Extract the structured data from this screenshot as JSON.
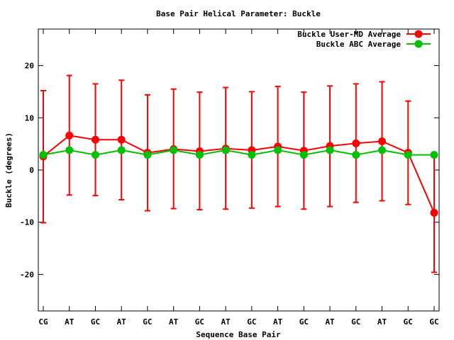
{
  "chart_data": {
    "type": "line",
    "title": "Base Pair Helical Parameter: Buckle",
    "xlabel": "Sequence Base Pair",
    "ylabel": "Buckle (degrees)",
    "categories": [
      "CG",
      "AT",
      "GC",
      "AT",
      "GC",
      "AT",
      "GC",
      "AT",
      "GC",
      "AT",
      "GC",
      "AT",
      "GC",
      "AT",
      "GC",
      "GC"
    ],
    "ylim": [
      -27,
      27
    ],
    "yticks": [
      -20,
      -10,
      0,
      10,
      20
    ],
    "grid": false,
    "legend_position": "top-right",
    "series": [
      {
        "name": "Buckle User-MD Average",
        "color": "#ff0000",
        "values": [
          2.6,
          6.6,
          5.8,
          5.8,
          3.3,
          4.0,
          3.6,
          4.1,
          3.8,
          4.5,
          3.7,
          4.6,
          5.1,
          5.5,
          3.3,
          -8.2
        ],
        "error_low": [
          -10.1,
          -4.8,
          -4.9,
          -5.7,
          -7.8,
          -7.4,
          -7.6,
          -7.5,
          -7.3,
          -7.0,
          -7.5,
          -7.0,
          -6.2,
          -5.9,
          -6.6,
          -19.6
        ],
        "error_high": [
          15.2,
          18.1,
          16.5,
          17.2,
          14.4,
          15.5,
          14.9,
          15.8,
          15.0,
          16.0,
          14.9,
          16.1,
          16.5,
          16.9,
          13.2,
          3.3
        ]
      },
      {
        "name": "Buckle ABC Average",
        "color": "#00c000",
        "values": [
          2.9,
          3.8,
          2.9,
          3.8,
          2.9,
          3.8,
          2.9,
          3.8,
          2.9,
          3.8,
          2.9,
          3.8,
          2.9,
          3.8,
          2.9,
          2.9
        ]
      }
    ]
  }
}
